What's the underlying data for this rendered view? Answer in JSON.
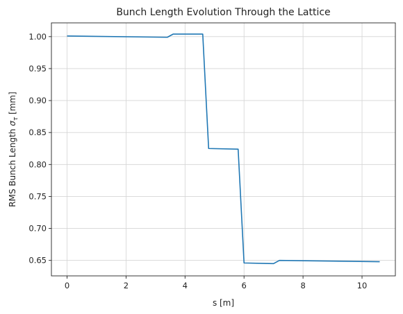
{
  "chart_data": {
    "type": "line",
    "title": "Bunch Length Evolution Through the Lattice",
    "xlabel": "s [m]",
    "ylabel_prefix": "RMS Bunch Length ",
    "ylabel_symbol": "σ",
    "ylabel_subscript": "τ",
    "ylabel_suffix": " [mm]",
    "xlim": [
      -0.53,
      11.13
    ],
    "ylim": [
      0.6258,
      1.0215
    ],
    "xticks": [
      0,
      2,
      4,
      6,
      8,
      10
    ],
    "xtick_labels": [
      "0",
      "2",
      "4",
      "6",
      "8",
      "10"
    ],
    "yticks": [
      0.65,
      0.7,
      0.75,
      0.8,
      0.85,
      0.9,
      0.95,
      1.0
    ],
    "ytick_labels": [
      "0.65",
      "0.70",
      "0.75",
      "0.80",
      "0.85",
      "0.90",
      "0.95",
      "1.00"
    ],
    "grid": true,
    "line_color": "#1f77b4",
    "series": [
      {
        "x": [
          0,
          3.4,
          3.6,
          4.6,
          4.8,
          5.8,
          6.0,
          7.0,
          7.2,
          10.6
        ],
        "y": [
          1.001,
          0.999,
          1.004,
          1.004,
          0.825,
          0.824,
          0.646,
          0.645,
          0.65,
          0.648
        ]
      }
    ]
  }
}
